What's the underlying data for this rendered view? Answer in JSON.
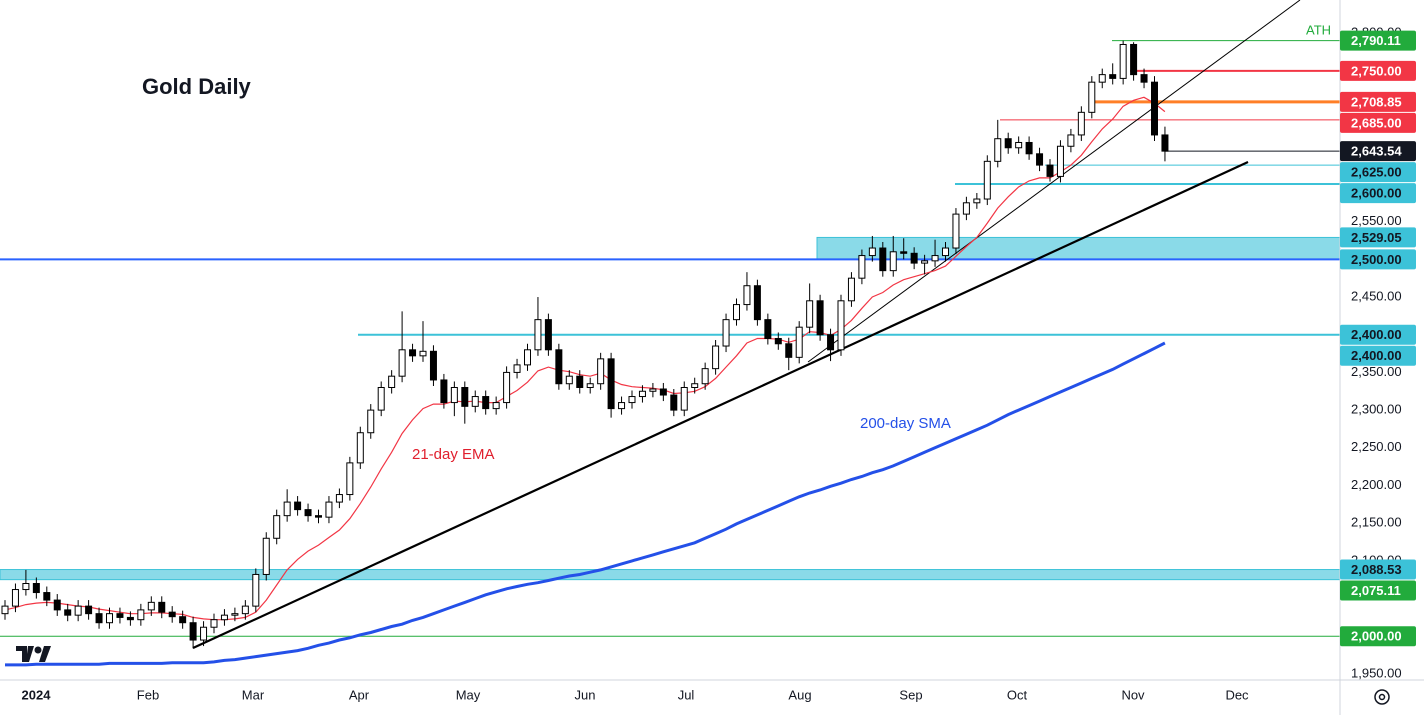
{
  "chart_data": {
    "type": "candlestick",
    "title": "Gold Daily",
    "annotation": "ATH",
    "ylim": [
      1942,
      2844
    ],
    "yticks": [
      {
        "value": 1950,
        "label": "1,950.00"
      },
      {
        "value": 2100,
        "label": "2,100.00"
      },
      {
        "value": 2150,
        "label": "2,150.00"
      },
      {
        "value": 2200,
        "label": "2,200.00"
      },
      {
        "value": 2250,
        "label": "2,250.00"
      },
      {
        "value": 2300,
        "label": "2,300.00"
      },
      {
        "value": 2350,
        "label": "2,350.00"
      },
      {
        "value": 2450,
        "label": "2,450.00"
      },
      {
        "value": 2550,
        "label": "2,550.00"
      },
      {
        "value": 2800,
        "label": "2,800.00"
      }
    ],
    "x_labels": [
      "2024",
      "Feb",
      "Mar",
      "Apr",
      "May",
      "Jun",
      "Jul",
      "Aug",
      "Sep",
      "Oct",
      "Nov",
      "Dec"
    ],
    "up_color": "#ffffff",
    "down_color": "#000000",
    "candles": {
      "open": [
        2030,
        2040,
        2062,
        2070,
        2058,
        2048,
        2035,
        2028,
        2040,
        2030,
        2018,
        2030,
        2025,
        2022,
        2035,
        2045,
        2032,
        2026,
        2018,
        1995,
        2012,
        2022,
        2028,
        2030,
        2040,
        2082,
        2130,
        2160,
        2178,
        2168,
        2160,
        2158,
        2178,
        2188,
        2230,
        2270,
        2300,
        2330,
        2345,
        2380,
        2372,
        2378,
        2340,
        2310,
        2330,
        2305,
        2318,
        2302,
        2310,
        2350,
        2360,
        2380,
        2420,
        2380,
        2335,
        2345,
        2330,
        2335,
        2368,
        2302,
        2310,
        2318,
        2325,
        2328,
        2320,
        2300,
        2330,
        2335,
        2355,
        2385,
        2420,
        2440,
        2465,
        2420,
        2395,
        2388,
        2370,
        2410,
        2445,
        2400,
        2380,
        2445,
        2475,
        2505,
        2515,
        2485,
        2510,
        2508,
        2495,
        2498,
        2505,
        2515,
        2560,
        2575,
        2580,
        2630,
        2660,
        2648,
        2655,
        2640,
        2625,
        2610,
        2650,
        2665,
        2695,
        2735,
        2745,
        2740,
        2785,
        2745,
        2735,
        2665
      ],
      "high": [
        2048,
        2070,
        2088,
        2078,
        2066,
        2056,
        2043,
        2048,
        2048,
        2038,
        2038,
        2038,
        2033,
        2043,
        2053,
        2053,
        2040,
        2034,
        2026,
        2020,
        2030,
        2036,
        2038,
        2048,
        2090,
        2138,
        2168,
        2195,
        2186,
        2176,
        2168,
        2186,
        2196,
        2238,
        2278,
        2308,
        2338,
        2353,
        2431,
        2388,
        2418,
        2386,
        2348,
        2338,
        2338,
        2326,
        2326,
        2318,
        2358,
        2368,
        2388,
        2450,
        2428,
        2388,
        2353,
        2353,
        2343,
        2376,
        2376,
        2318,
        2326,
        2333,
        2336,
        2336,
        2328,
        2338,
        2343,
        2363,
        2393,
        2428,
        2448,
        2483,
        2473,
        2428,
        2403,
        2396,
        2418,
        2468,
        2453,
        2408,
        2453,
        2483,
        2513,
        2531,
        2523,
        2531,
        2528,
        2516,
        2506,
        2526,
        2523,
        2568,
        2583,
        2588,
        2638,
        2685,
        2668,
        2663,
        2663,
        2648,
        2633,
        2658,
        2673,
        2703,
        2743,
        2753,
        2760,
        2790.11,
        2788,
        2753,
        2743,
        2676
      ],
      "low": [
        2022,
        2032,
        2054,
        2050,
        2040,
        2027,
        2020,
        2020,
        2022,
        2010,
        2010,
        2017,
        2014,
        2014,
        2027,
        2024,
        2018,
        2010,
        1984,
        1987,
        2004,
        2014,
        2020,
        2022,
        2032,
        2074,
        2122,
        2152,
        2160,
        2152,
        2150,
        2150,
        2170,
        2180,
        2222,
        2262,
        2292,
        2322,
        2337,
        2364,
        2364,
        2332,
        2302,
        2292,
        2282,
        2297,
        2294,
        2294,
        2302,
        2342,
        2352,
        2372,
        2372,
        2327,
        2327,
        2322,
        2322,
        2327,
        2290,
        2294,
        2302,
        2310,
        2317,
        2312,
        2292,
        2292,
        2322,
        2327,
        2347,
        2377,
        2412,
        2432,
        2412,
        2387,
        2380,
        2353,
        2362,
        2402,
        2392,
        2365,
        2372,
        2437,
        2467,
        2497,
        2477,
        2477,
        2500,
        2487,
        2480,
        2490,
        2497,
        2507,
        2552,
        2567,
        2572,
        2622,
        2640,
        2640,
        2632,
        2617,
        2603,
        2602,
        2642,
        2657,
        2687,
        2727,
        2732,
        2732,
        2737,
        2727,
        2657,
        2630
      ],
      "close": [
        2040,
        2062,
        2070,
        2058,
        2048,
        2035,
        2028,
        2040,
        2030,
        2018,
        2030,
        2025,
        2022,
        2035,
        2045,
        2032,
        2026,
        2018,
        1995,
        2012,
        2022,
        2028,
        2030,
        2040,
        2082,
        2130,
        2160,
        2178,
        2168,
        2160,
        2158,
        2178,
        2188,
        2230,
        2270,
        2300,
        2330,
        2345,
        2380,
        2372,
        2378,
        2340,
        2310,
        2330,
        2305,
        2318,
        2302,
        2310,
        2350,
        2360,
        2380,
        2420,
        2380,
        2335,
        2345,
        2330,
        2335,
        2368,
        2302,
        2310,
        2318,
        2325,
        2328,
        2320,
        2300,
        2330,
        2335,
        2355,
        2385,
        2420,
        2440,
        2465,
        2420,
        2395,
        2388,
        2370,
        2410,
        2445,
        2400,
        2380,
        2445,
        2475,
        2505,
        2515,
        2485,
        2510,
        2508,
        2495,
        2498,
        2505,
        2515,
        2560,
        2575,
        2580,
        2630,
        2660,
        2648,
        2655,
        2640,
        2625,
        2610,
        2650,
        2665,
        2695,
        2735,
        2745,
        2740,
        2785,
        2745,
        2735,
        2665,
        2643.54
      ]
    },
    "series": [
      {
        "name": "21-day EMA",
        "color": "#f23645",
        "values": [
          2035,
          2038,
          2042,
          2044,
          2045,
          2044,
          2042,
          2040,
          2039,
          2036,
          2034,
          2032,
          2030,
          2030,
          2031,
          2031,
          2030,
          2029,
          2025,
          2023,
          2022,
          2022,
          2023,
          2025,
          2032,
          2048,
          2068,
          2088,
          2102,
          2113,
          2121,
          2131,
          2141,
          2156,
          2176,
          2198,
          2222,
          2244,
          2269,
          2287,
          2302,
          2308,
          2308,
          2312,
          2311,
          2312,
          2310,
          2310,
          2318,
          2326,
          2337,
          2352,
          2357,
          2353,
          2351,
          2347,
          2345,
          2349,
          2340,
          2334,
          2331,
          2330,
          2329,
          2327,
          2322,
          2323,
          2325,
          2331,
          2342,
          2357,
          2372,
          2389,
          2395,
          2395,
          2394,
          2390,
          2394,
          2404,
          2403,
          2399,
          2407,
          2419,
          2435,
          2450,
          2456,
          2466,
          2473,
          2477,
          2481,
          2485,
          2491,
          2504,
          2517,
          2529,
          2548,
          2568,
          2583,
          2596,
          2604,
          2608,
          2608,
          2616,
          2625,
          2638,
          2656,
          2673,
          2686,
          2703,
          2711,
          2715,
          2707,
          2696
        ]
      },
      {
        "name": "200-day SMA",
        "color": "#2450e8",
        "values": [
          1962,
          1962,
          1962,
          1963,
          1963,
          1963,
          1963,
          1963,
          1963,
          1963,
          1964,
          1964,
          1964,
          1964,
          1964,
          1964,
          1965,
          1965,
          1965,
          1965,
          1966,
          1968,
          1969,
          1971,
          1973,
          1975,
          1977,
          1979,
          1981,
          1984,
          1988,
          1991,
          1995,
          1998,
          2002,
          2005,
          2009,
          2013,
          2016,
          2021,
          2025,
          2030,
          2035,
          2040,
          2045,
          2050,
          2055,
          2059,
          2063,
          2066,
          2069,
          2071,
          2074,
          2077,
          2080,
          2082,
          2085,
          2088,
          2092,
          2096,
          2100,
          2104,
          2108,
          2112,
          2116,
          2120,
          2124,
          2130,
          2136,
          2142,
          2149,
          2155,
          2161,
          2167,
          2173,
          2179,
          2185,
          2190,
          2194,
          2199,
          2203,
          2208,
          2212,
          2217,
          2221,
          2226,
          2232,
          2238,
          2244,
          2250,
          2256,
          2262,
          2268,
          2274,
          2280,
          2287,
          2294,
          2300,
          2306,
          2312,
          2318,
          2324,
          2330,
          2336,
          2342,
          2348,
          2354,
          2361,
          2368,
          2375,
          2382,
          2389
        ]
      }
    ],
    "levels": [
      {
        "value": 2790.11,
        "label": "2,790.11",
        "color": "#22ab3c",
        "text_color": "#ffffff"
      },
      {
        "value": 2750,
        "label": "2,750.00",
        "color": "#f23645",
        "text_color": "#ffffff"
      },
      {
        "value": 2708.85,
        "label": "2,708.85",
        "color": "#f23645",
        "line_color": "#ff7f27",
        "text_color": "#ffffff"
      },
      {
        "value": 2685,
        "label": "2,685.00",
        "color": "#f23645",
        "text_color": "#ffffff"
      },
      {
        "value": 2643.54,
        "label": "2,643.54",
        "color": "#131722",
        "text_color": "#ffffff"
      },
      {
        "value": 2625,
        "label": "2,625.00",
        "color": "#3cc2d8",
        "text_color": "#131722"
      },
      {
        "value": 2600,
        "label": "2,600.00",
        "color": "#3cc2d8",
        "text_color": "#131722"
      },
      {
        "value": 2529.05,
        "label": "2,529.05",
        "color": "#3cc2d8",
        "text_color": "#131722"
      },
      {
        "value": 2500,
        "label": "2,500.00",
        "color": "#3cc2d8",
        "line_color": "#2962ff",
        "text_color": "#131722"
      },
      {
        "value": 2400,
        "label": "2,400.00",
        "color": "#3cc2d8",
        "text_color": "#131722"
      },
      {
        "value": 2400,
        "label": "2,400.00",
        "color": "#3cc2d8",
        "text_color": "#131722"
      },
      {
        "value": 2088.53,
        "label": "2,088.53",
        "color": "#3cc2d8",
        "text_color": "#131722"
      },
      {
        "value": 2075.11,
        "label": "2,075.11",
        "color": "#22ab3c",
        "text_color": "#ffffff"
      },
      {
        "value": 2000,
        "label": "2,000.00",
        "color": "#22ab3c",
        "text_color": "#ffffff"
      }
    ]
  }
}
